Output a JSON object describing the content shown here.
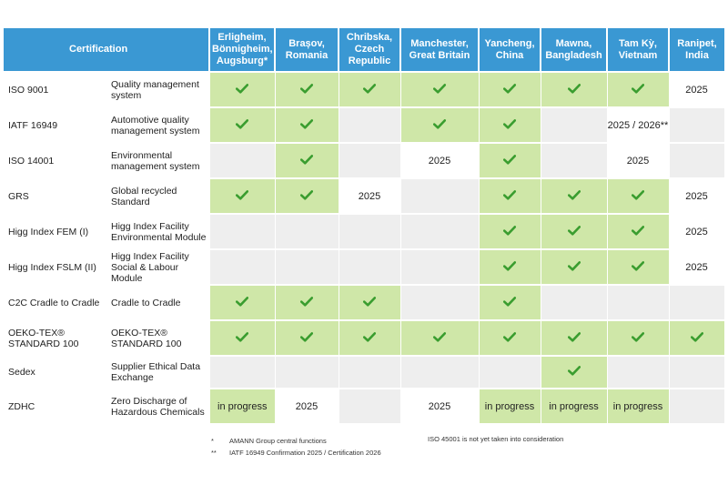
{
  "header": {
    "certification": "Certification",
    "locations": [
      "Erligheim, Bönnigheim, Augsburg*",
      "Brașov, Romania",
      "Chribska, Czech Republic",
      "Manchester, Great Britain",
      "Yancheng, China",
      "Mawna, Bangladesh",
      "Tam Kỳ, Vietnam",
      "Ranipet, India"
    ]
  },
  "rows": [
    {
      "name": "ISO 9001",
      "desc": "Quality management system",
      "cells": [
        {
          "s": "g",
          "v": "check"
        },
        {
          "s": "g",
          "v": "check"
        },
        {
          "s": "g",
          "v": "check"
        },
        {
          "s": "g",
          "v": "check"
        },
        {
          "s": "g",
          "v": "check"
        },
        {
          "s": "g",
          "v": "check"
        },
        {
          "s": "g",
          "v": "check"
        },
        {
          "s": "w",
          "v": "2025"
        }
      ]
    },
    {
      "name": "IATF 16949",
      "desc": "Automotive quality management system",
      "cells": [
        {
          "s": "g",
          "v": "check"
        },
        {
          "s": "g",
          "v": "check"
        },
        {
          "s": "e",
          "v": ""
        },
        {
          "s": "g",
          "v": "check"
        },
        {
          "s": "g",
          "v": "check"
        },
        {
          "s": "e",
          "v": ""
        },
        {
          "s": "w",
          "v": "2025 / 2026**"
        },
        {
          "s": "e",
          "v": ""
        }
      ]
    },
    {
      "name": "ISO 14001",
      "desc": "Environmental management system",
      "cells": [
        {
          "s": "e",
          "v": ""
        },
        {
          "s": "g",
          "v": "check"
        },
        {
          "s": "e",
          "v": ""
        },
        {
          "s": "w",
          "v": "2025"
        },
        {
          "s": "g",
          "v": "check"
        },
        {
          "s": "e",
          "v": ""
        },
        {
          "s": "w",
          "v": "2025"
        },
        {
          "s": "e",
          "v": ""
        }
      ]
    },
    {
      "name": "GRS",
      "desc": "Global recycled Standard",
      "cells": [
        {
          "s": "g",
          "v": "check"
        },
        {
          "s": "g",
          "v": "check"
        },
        {
          "s": "w",
          "v": "2025"
        },
        {
          "s": "e",
          "v": ""
        },
        {
          "s": "g",
          "v": "check"
        },
        {
          "s": "g",
          "v": "check"
        },
        {
          "s": "g",
          "v": "check"
        },
        {
          "s": "w",
          "v": "2025"
        }
      ]
    },
    {
      "name": "Higg Index FEM (I)",
      "desc": "Higg Index Facility Environmental Module",
      "cells": [
        {
          "s": "e",
          "v": ""
        },
        {
          "s": "e",
          "v": ""
        },
        {
          "s": "e",
          "v": ""
        },
        {
          "s": "e",
          "v": ""
        },
        {
          "s": "g",
          "v": "check"
        },
        {
          "s": "g",
          "v": "check"
        },
        {
          "s": "g",
          "v": "check"
        },
        {
          "s": "w",
          "v": "2025"
        }
      ]
    },
    {
      "name": "Higg Index FSLM (II)",
      "desc": "Higg Index Facility Social & Labour Module",
      "cells": [
        {
          "s": "e",
          "v": ""
        },
        {
          "s": "e",
          "v": ""
        },
        {
          "s": "e",
          "v": ""
        },
        {
          "s": "e",
          "v": ""
        },
        {
          "s": "g",
          "v": "check"
        },
        {
          "s": "g",
          "v": "check"
        },
        {
          "s": "g",
          "v": "check"
        },
        {
          "s": "w",
          "v": "2025"
        }
      ]
    },
    {
      "name": "C2C Cradle to Cradle",
      "desc": "Cradle to Cradle",
      "cells": [
        {
          "s": "g",
          "v": "check"
        },
        {
          "s": "g",
          "v": "check"
        },
        {
          "s": "g",
          "v": "check"
        },
        {
          "s": "e",
          "v": ""
        },
        {
          "s": "g",
          "v": "check"
        },
        {
          "s": "e",
          "v": ""
        },
        {
          "s": "e",
          "v": ""
        },
        {
          "s": "e",
          "v": ""
        }
      ]
    },
    {
      "name": "OEKO-TEX® STANDARD 100",
      "desc": "OEKO-TEX® STANDARD 100",
      "cells": [
        {
          "s": "g",
          "v": "check"
        },
        {
          "s": "g",
          "v": "check"
        },
        {
          "s": "g",
          "v": "check"
        },
        {
          "s": "g",
          "v": "check"
        },
        {
          "s": "g",
          "v": "check"
        },
        {
          "s": "g",
          "v": "check"
        },
        {
          "s": "g",
          "v": "check"
        },
        {
          "s": "g",
          "v": "check"
        }
      ]
    },
    {
      "name": "Sedex",
      "desc": "Supplier Ethical Data Exchange",
      "cells": [
        {
          "s": "e",
          "v": ""
        },
        {
          "s": "e",
          "v": ""
        },
        {
          "s": "e",
          "v": ""
        },
        {
          "s": "e",
          "v": ""
        },
        {
          "s": "e",
          "v": ""
        },
        {
          "s": "g",
          "v": "check"
        },
        {
          "s": "e",
          "v": ""
        },
        {
          "s": "e",
          "v": ""
        }
      ]
    },
    {
      "name": "ZDHC",
      "desc": "Zero Discharge of Hazardous Chemicals",
      "cells": [
        {
          "s": "g",
          "v": "in progress"
        },
        {
          "s": "w",
          "v": "2025"
        },
        {
          "s": "e",
          "v": ""
        },
        {
          "s": "w",
          "v": "2025"
        },
        {
          "s": "g",
          "v": "in progress"
        },
        {
          "s": "g",
          "v": "in progress"
        },
        {
          "s": "g",
          "v": "in progress"
        },
        {
          "s": "e",
          "v": ""
        }
      ]
    }
  ],
  "footnotes": {
    "note1_mark": "*",
    "note1_text": "AMANN Group central functions",
    "note2_mark": "**",
    "note2_text": "IATF 16949 Confirmation 2025 / Certification 2026",
    "note3_text": "ISO 45001 is not yet taken into consideration"
  },
  "colors": {
    "header": "#3a98d3",
    "green": "#cfe7a8",
    "grey": "#eeeeee",
    "check": "#3a9d2f"
  },
  "icons": {
    "check": "check-icon"
  }
}
